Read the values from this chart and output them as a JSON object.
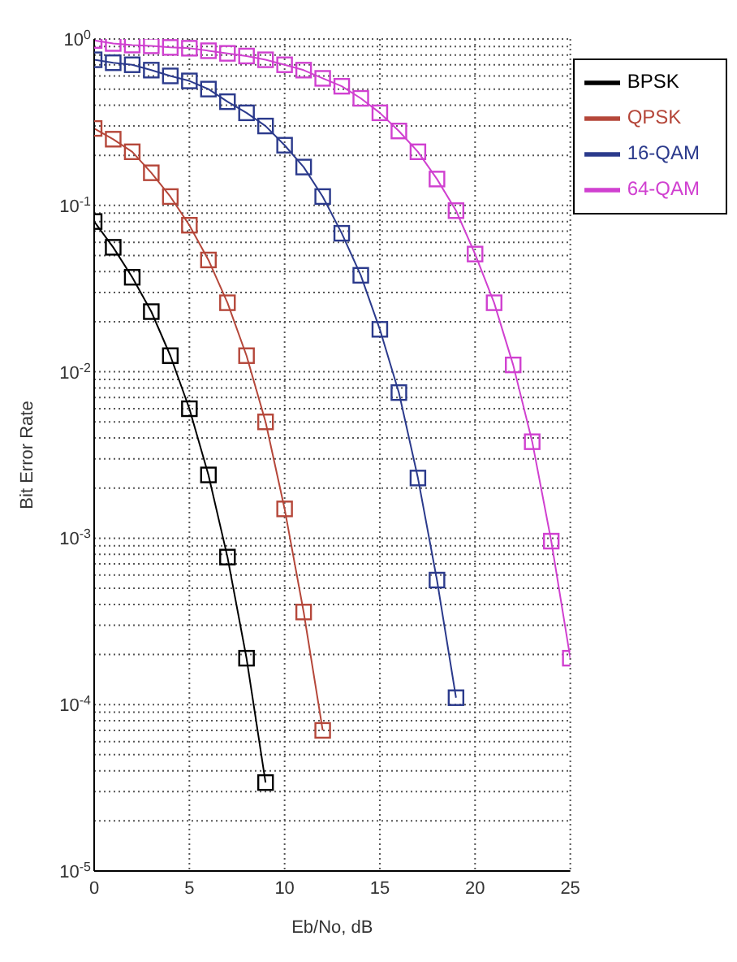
{
  "chart_data": {
    "type": "line",
    "xlabel": "Eb/No, dB",
    "ylabel": "Bit Error Rate",
    "x": [
      0,
      1,
      2,
      3,
      4,
      5,
      6,
      7,
      8,
      9,
      10,
      11,
      12,
      13,
      14,
      15,
      16,
      17,
      18,
      19,
      20,
      21,
      22,
      23,
      24,
      25
    ],
    "series": [
      {
        "name": "BPSK",
        "color": "#000000",
        "values": [
          0.08,
          0.056,
          0.037,
          0.023,
          0.0125,
          0.006,
          0.0024,
          0.00077,
          0.00019,
          3.4e-05,
          null,
          null,
          null,
          null,
          null,
          null,
          null,
          null,
          null,
          null,
          null,
          null,
          null,
          null,
          null,
          null
        ]
      },
      {
        "name": "QPSK",
        "color": "#b5473a",
        "values": [
          0.29,
          0.25,
          0.21,
          0.157,
          0.113,
          0.076,
          0.047,
          0.026,
          0.0125,
          0.005,
          0.0015,
          0.00036,
          7e-05,
          null,
          null,
          null,
          null,
          null,
          null,
          null,
          null,
          null,
          null,
          null,
          null,
          null
        ]
      },
      {
        "name": "16-QAM",
        "color": "#2b3a8c",
        "values": [
          0.75,
          0.72,
          0.7,
          0.65,
          0.6,
          0.56,
          0.5,
          0.42,
          0.36,
          0.3,
          0.23,
          0.17,
          0.113,
          0.068,
          0.038,
          0.018,
          0.0075,
          0.0023,
          0.00056,
          0.00011,
          null,
          null,
          null,
          null,
          null,
          null
        ]
      },
      {
        "name": "64-QAM",
        "color": "#d040d0",
        "values": [
          0.98,
          0.94,
          0.92,
          0.91,
          0.89,
          0.88,
          0.85,
          0.82,
          0.79,
          0.75,
          0.7,
          0.65,
          0.58,
          0.52,
          0.44,
          0.36,
          0.28,
          0.21,
          0.144,
          0.093,
          0.051,
          0.026,
          0.011,
          0.0038,
          0.00096,
          0.00019
        ]
      }
    ],
    "xlim": [
      0,
      25
    ],
    "xticks": [
      0,
      5,
      10,
      15,
      20,
      25
    ],
    "ylim": [
      1e-05,
      1
    ],
    "log": true,
    "yticks": [
      {
        "value": 1e-05,
        "label": "10$^{-5}$"
      },
      {
        "value": 2e-05,
        "label": null
      },
      {
        "value": 3e-05,
        "label": null
      },
      {
        "value": 4e-05,
        "label": null
      },
      {
        "value": 5e-05,
        "label": null
      },
      {
        "value": 6e-05,
        "label": null
      },
      {
        "value": 7e-05,
        "label": null
      },
      {
        "value": 8e-05,
        "label": null
      },
      {
        "value": 9e-05,
        "label": null
      },
      {
        "value": 0.0001,
        "label": "10$^{-4}$"
      },
      {
        "value": 0.0002,
        "label": null
      },
      {
        "value": 0.0003,
        "label": null
      },
      {
        "value": 0.0004,
        "label": null
      },
      {
        "value": 0.0005,
        "label": null
      },
      {
        "value": 0.0006,
        "label": null
      },
      {
        "value": 0.0007,
        "label": null
      },
      {
        "value": 0.0008,
        "label": null
      },
      {
        "value": 0.0009,
        "label": null
      },
      {
        "value": 0.001,
        "label": "10$^{-3}$"
      },
      {
        "value": 0.002,
        "label": null
      },
      {
        "value": 0.003,
        "label": null
      },
      {
        "value": 0.004,
        "label": null
      },
      {
        "value": 0.005,
        "label": null
      },
      {
        "value": 0.006,
        "label": null
      },
      {
        "value": 0.007,
        "label": null
      },
      {
        "value": 0.008,
        "label": null
      },
      {
        "value": 0.009,
        "label": null
      },
      {
        "value": 0.01,
        "label": "10$^{-2}$"
      },
      {
        "value": 0.02,
        "label": null
      },
      {
        "value": 0.03,
        "label": null
      },
      {
        "value": 0.04,
        "label": null
      },
      {
        "value": 0.05,
        "label": null
      },
      {
        "value": 0.06,
        "label": null
      },
      {
        "value": 0.07,
        "label": null
      },
      {
        "value": 0.08,
        "label": null
      },
      {
        "value": 0.09,
        "label": null
      },
      {
        "value": 0.1,
        "label": "10$^{-1}$"
      },
      {
        "value": 0.2,
        "label": null
      },
      {
        "value": 0.3,
        "label": null
      },
      {
        "value": 0.4,
        "label": null
      },
      {
        "value": 0.5,
        "label": null
      },
      {
        "value": 0.6,
        "label": null
      },
      {
        "value": 0.7,
        "label": null
      },
      {
        "value": 0.8,
        "label": null
      },
      {
        "value": 0.9,
        "label": null
      },
      {
        "value": 1,
        "label": "10$^{0}$"
      }
    ],
    "grid": true,
    "legend": "top right",
    "marker": "square",
    "line_style": "solid"
  }
}
